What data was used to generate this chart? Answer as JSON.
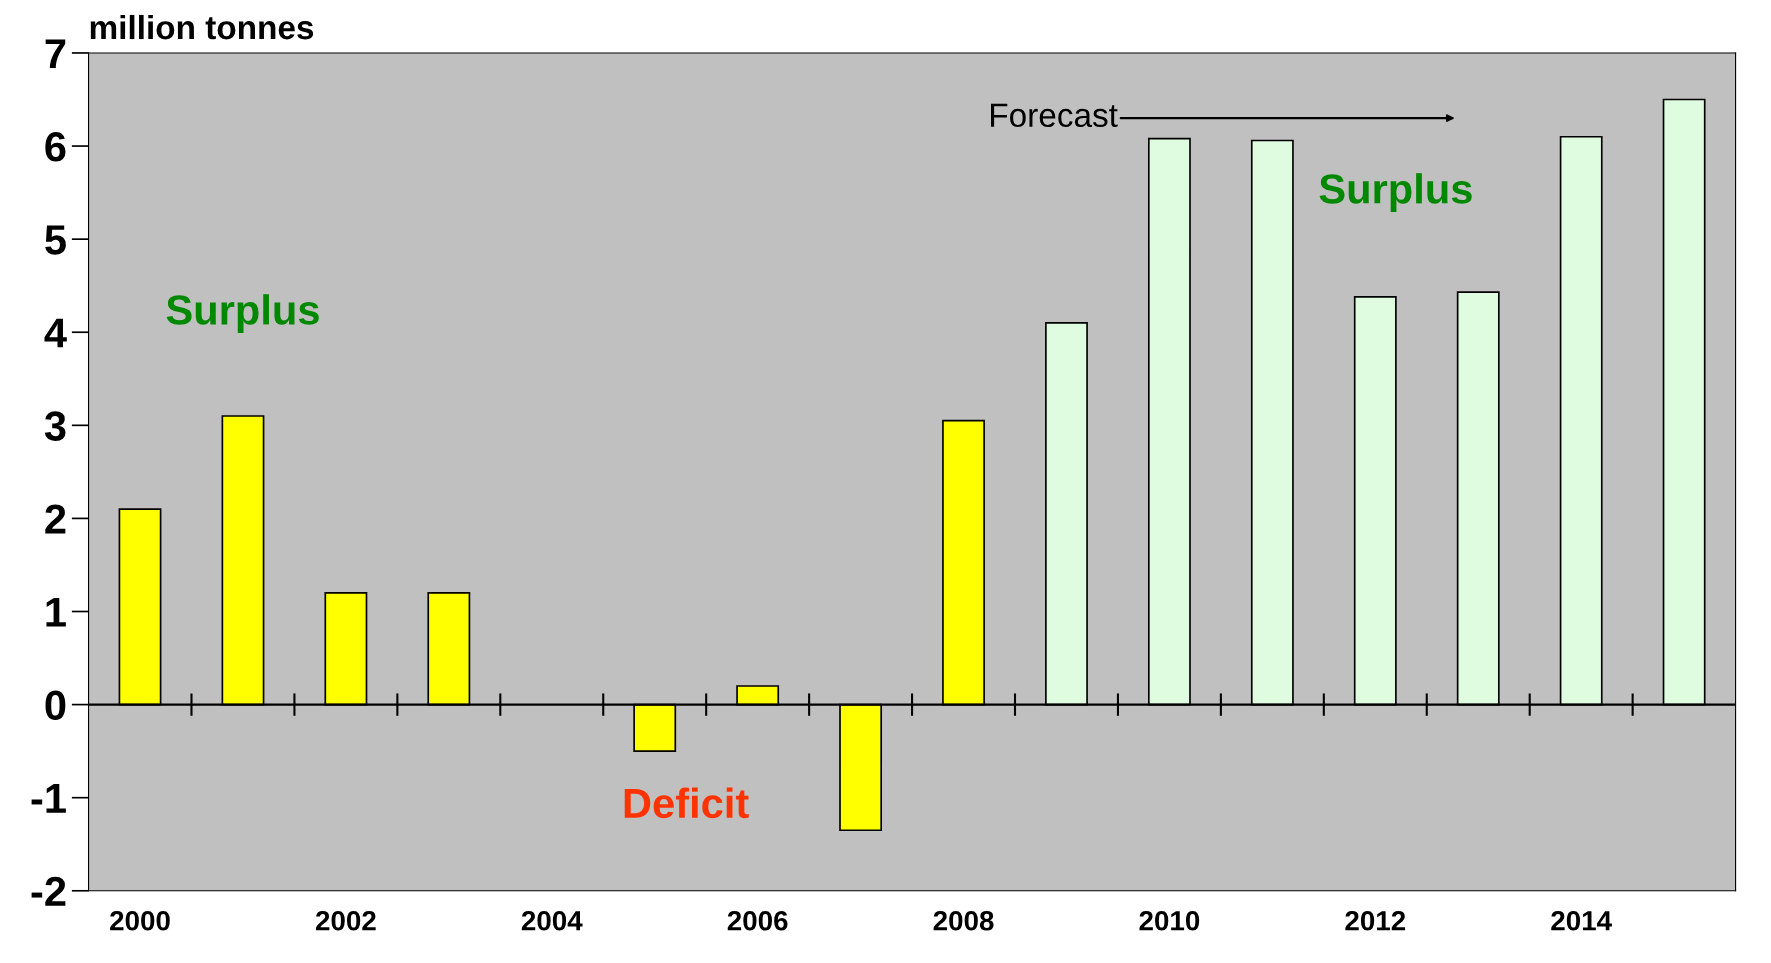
{
  "chart_data": {
    "type": "bar",
    "ylabel": "million tonnes",
    "categories": [
      "2000",
      null,
      "2002",
      null,
      "2004",
      null,
      "2006",
      null,
      "2008",
      null,
      "2010",
      null,
      "2012",
      null,
      "2014",
      null
    ],
    "values": [
      2.1,
      3.1,
      1.2,
      1.2,
      null,
      -0.5,
      0.2,
      -1.35,
      3.05,
      4.1,
      6.08,
      6.06,
      4.38,
      4.43,
      6.1,
      6.5
    ],
    "colors": [
      "#ffff00",
      "#ffff00",
      "#ffff00",
      "#ffff00",
      "#ffff00",
      "#ffff00",
      "#ffff00",
      "#ffff00",
      "#ffff00",
      "#e0fce0",
      "#e0fce0",
      "#e0fce0",
      "#e0fce0",
      "#e0fce0",
      "#e0fce0",
      "#e0fce0"
    ],
    "ylim": [
      -2,
      7
    ],
    "yticks": [
      -2,
      -1,
      0,
      1,
      2,
      3,
      4,
      5,
      6,
      7
    ],
    "annotations": [
      "Surplus",
      "Deficit",
      "Surplus",
      "Forecast"
    ],
    "ref_lines": [
      {
        "axis": "y",
        "value": 0,
        "color": "#000000"
      }
    ],
    "grid": false,
    "legend": false
  }
}
